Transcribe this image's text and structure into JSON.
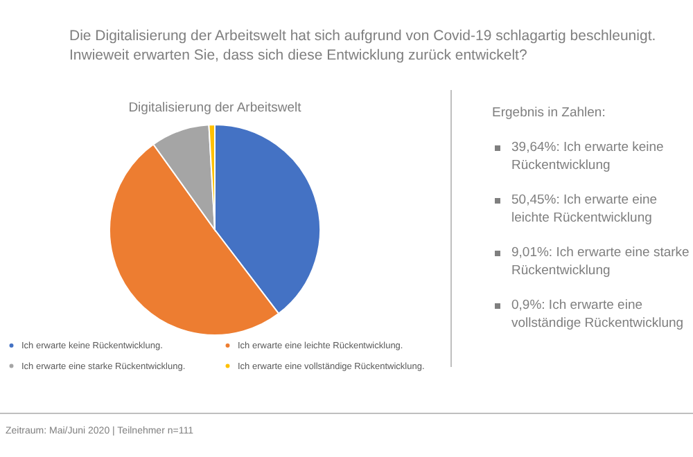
{
  "chart_data": [
    {
      "type": "pie",
      "title": "Digitalisierung der Arbeitswelt",
      "annotations": [
        "Die Digitalisierung der Arbeitswelt hat sich aufgrund von Covid-19 schlagartig beschleunigt. Inwieweit erwarten Sie, dass sich diese Entwicklung zurück entwickelt?",
        "Zeitraum: Mai/Juni 2020 | Teilnehmer n=111"
      ],
      "categories": [
        "Ich erwarte keine Rückentwicklung.",
        "Ich erwarte eine leichte Rückentwicklung.",
        "Ich erwarte eine starke Rückentwicklung.",
        "Ich erwarte eine vollständige Rückentwicklung."
      ],
      "values": [
        39.64,
        50.45,
        9.01,
        0.9
      ],
      "colors": [
        "#4472c4",
        "#ed7d31",
        "#a5a5a5",
        "#ffc000"
      ],
      "legend": "bottom"
    },
    {
      "type": "other",
      "title": "Ergebnis in Zahlen:",
      "annotations": [
        "39,64%:  Ich erwarte keine Rückentwicklung",
        "50,45%: Ich erwarte eine leichte Rückentwicklung",
        "9,01%: Ich erwarte eine starke Rückentwicklung",
        "0,9%: Ich erwarte eine vollständige Rückentwicklung"
      ]
    }
  ]
}
